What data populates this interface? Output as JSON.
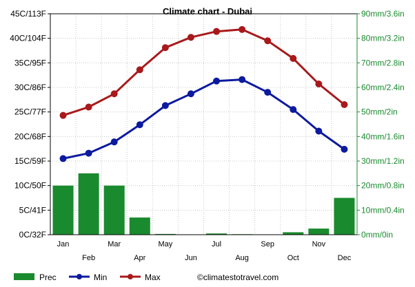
{
  "chart_data": {
    "type": "bar+line",
    "title": "Climate chart - Dubai",
    "categories": [
      "Jan",
      "Feb",
      "Mar",
      "Apr",
      "May",
      "Jun",
      "Jul",
      "Aug",
      "Sep",
      "Oct",
      "Nov",
      "Dec"
    ],
    "left_axis": {
      "ylim": [
        0,
        45
      ],
      "ticks": [
        0,
        5,
        10,
        15,
        20,
        25,
        30,
        35,
        40,
        45
      ],
      "tick_labels": [
        "0C/32F",
        "5C/41F",
        "10C/50F",
        "15C/59F",
        "20C/68F",
        "25C/77F",
        "30C/86F",
        "35C/95F",
        "40C/104F",
        "45C/113F"
      ]
    },
    "right_axis": {
      "ylim": [
        0,
        90
      ],
      "ticks": [
        0,
        10,
        20,
        30,
        40,
        50,
        60,
        70,
        80,
        90
      ],
      "tick_labels": [
        "0mm/0in",
        "10mm/0.4in",
        "20mm/0.8in",
        "30mm/1.2in",
        "40mm/1.6in",
        "50mm/2in",
        "60mm/2.4in",
        "70mm/2.8in",
        "80mm/3.2in",
        "90mm/3.6in"
      ]
    },
    "grid": true,
    "legend_position": "bottom",
    "series": [
      {
        "name": "Prec",
        "kind": "bar",
        "axis": "right",
        "color": "#1a8a2e",
        "values": [
          20,
          25,
          20,
          7,
          0.3,
          0,
          0.5,
          0.2,
          0,
          1,
          2.5,
          15
        ]
      },
      {
        "name": "Min",
        "kind": "line",
        "axis": "left",
        "color": "#0c1a9e",
        "values": [
          15.5,
          16.6,
          18.9,
          22.4,
          26.3,
          28.7,
          31.3,
          31.6,
          29.0,
          25.5,
          21.1,
          17.4
        ]
      },
      {
        "name": "Max",
        "kind": "line",
        "axis": "left",
        "color": "#a8191b",
        "values": [
          24.3,
          26.0,
          28.7,
          33.6,
          38.1,
          40.2,
          41.4,
          41.8,
          39.5,
          35.9,
          30.7,
          26.5
        ]
      }
    ],
    "credit": "©climatestotravel.com"
  }
}
